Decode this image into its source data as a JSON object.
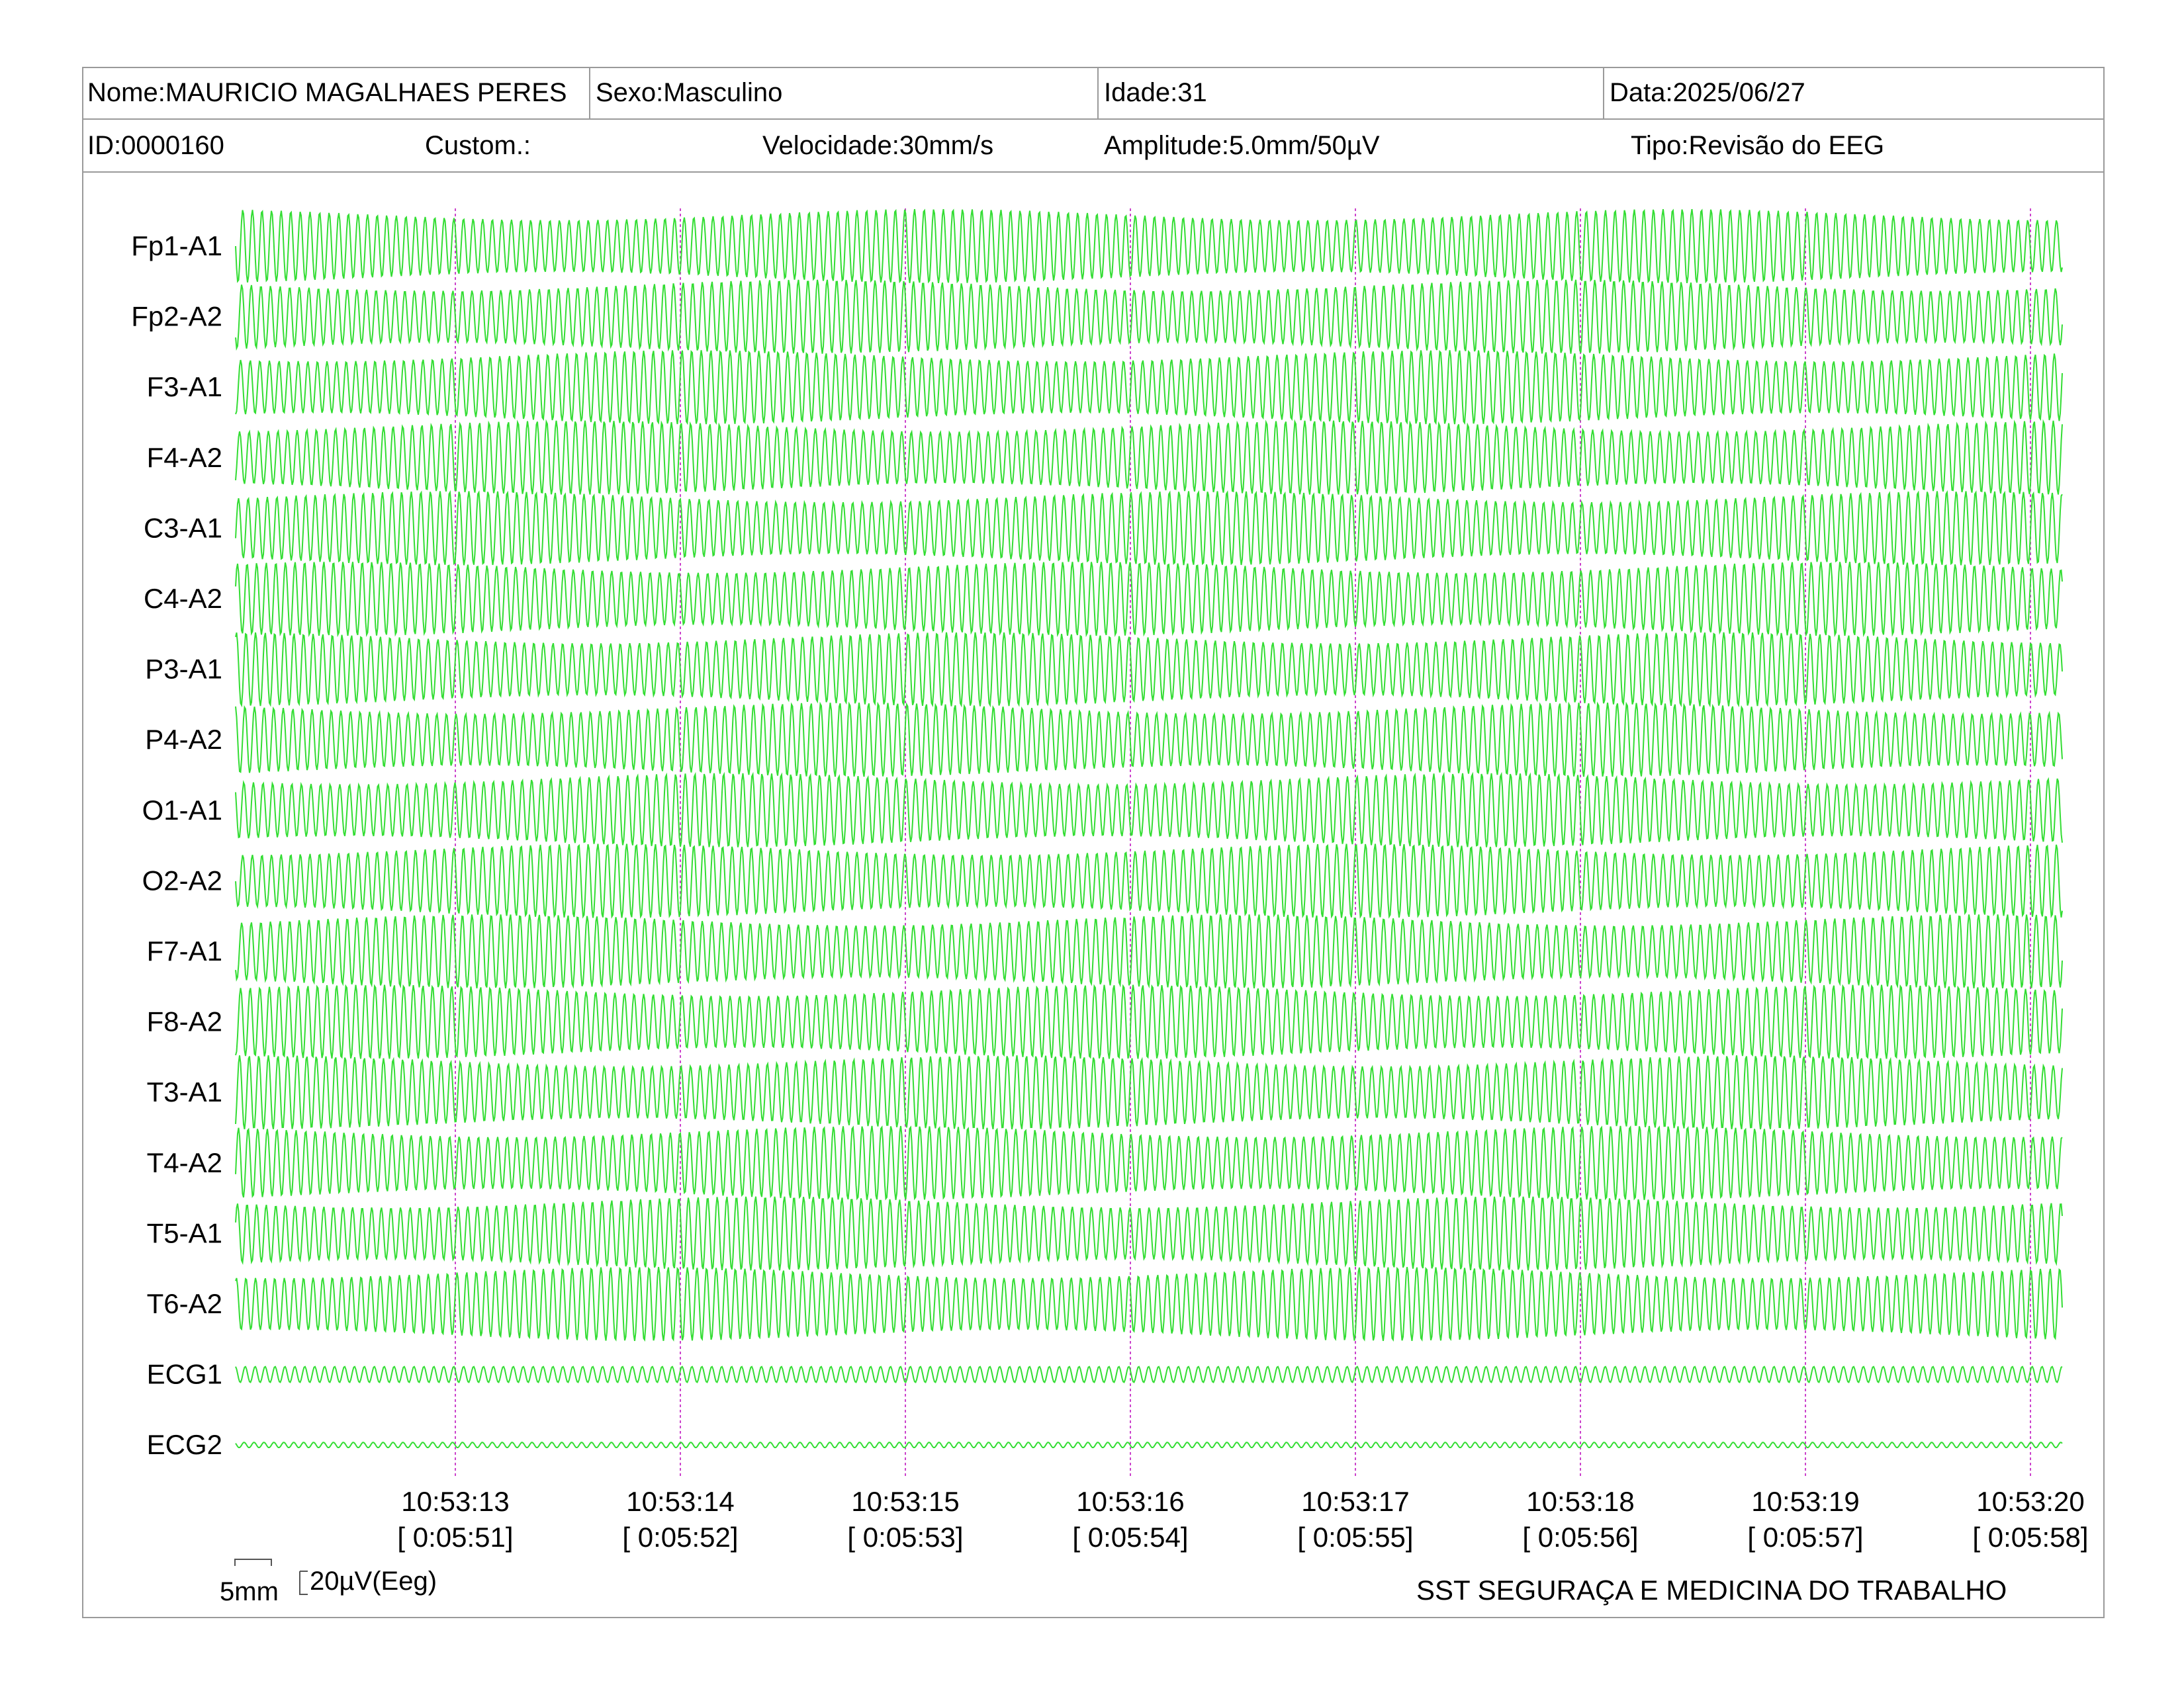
{
  "header": {
    "name": "Nome:MAURICIO MAGALHAES PERES",
    "sex": "Sexo:Masculino",
    "age": "Idade:31",
    "date": "Data:2025/06/27",
    "id": "ID:0000160",
    "custom": "Custom.:",
    "speed": "Velocidade:30mm/s",
    "amplitude": "Amplitude:5.0mm/50µV",
    "type": "Tipo:Revisão do EEG"
  },
  "channels": [
    "Fp1-A1",
    "Fp2-A2",
    "F3-A1",
    "F4-A2",
    "C3-A1",
    "C4-A2",
    "P3-A1",
    "P4-A2",
    "O1-A1",
    "O2-A2",
    "F7-A1",
    "F8-A2",
    "T3-A1",
    "T4-A2",
    "T5-A1",
    "T6-A2",
    "ECG1",
    "ECG2"
  ],
  "time_marks": [
    {
      "clock": "10:53:13",
      "elapsed": "[ 0:05:51]"
    },
    {
      "clock": "10:53:14",
      "elapsed": "[ 0:05:52]"
    },
    {
      "clock": "10:53:15",
      "elapsed": "[ 0:05:53]"
    },
    {
      "clock": "10:53:16",
      "elapsed": "[ 0:05:54]"
    },
    {
      "clock": "10:53:17",
      "elapsed": "[ 0:05:55]"
    },
    {
      "clock": "10:53:18",
      "elapsed": "[ 0:05:56]"
    },
    {
      "clock": "10:53:19",
      "elapsed": "[ 0:05:57]"
    },
    {
      "clock": "10:53:20",
      "elapsed": "[ 0:05:58]"
    }
  ],
  "scale": {
    "time_label": "5mm",
    "amp_label": "20µV(Eeg)"
  },
  "footer": "SST SEGURAÇA E MEDICINA DO TRABALHO",
  "colors": {
    "trace": "#33dd33",
    "marker": "#cc44cc",
    "border": "#9a9a9a"
  }
}
